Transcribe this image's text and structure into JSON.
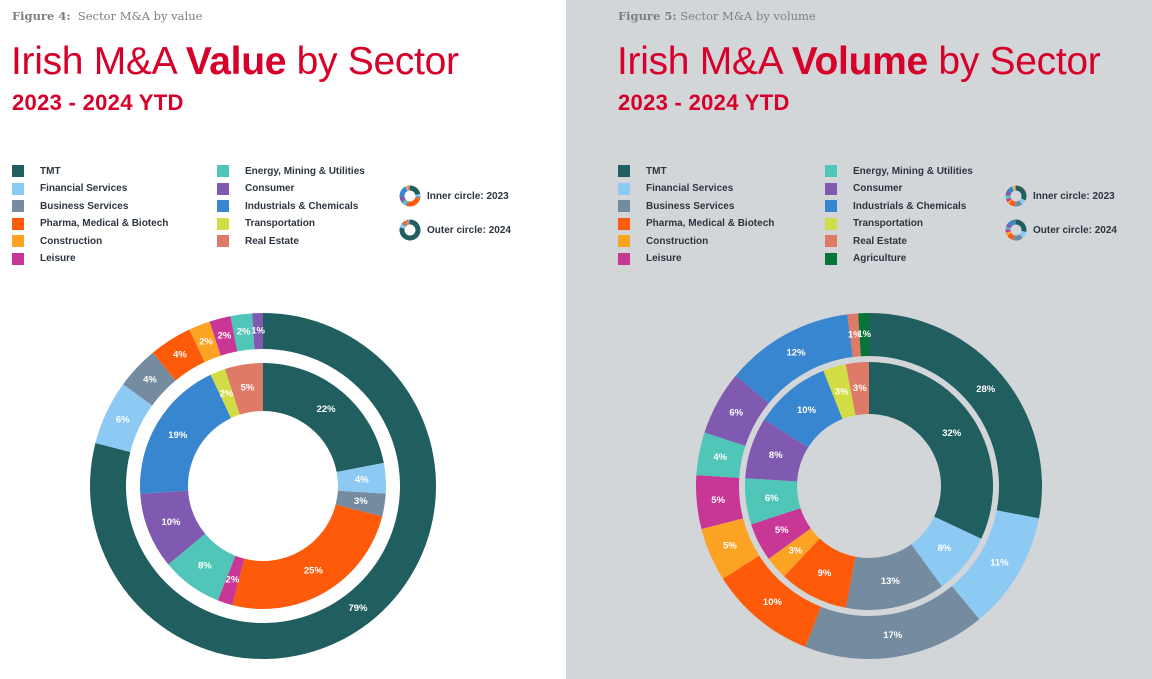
{
  "colors": {
    "TMT": "#215e60",
    "Financial Services": "#8ccaf4",
    "Business Services": "#758ba0",
    "Pharma, Medical & Biotech": "#fd5a0a",
    "Construction": "#fca324",
    "Leisure": "#c93796",
    "Energy, Mining & Utilities": "#50c6b8",
    "Consumer": "#7f5ab0",
    "Industrials & Chemicals": "#3886cf",
    "Transportation": "#d2dc44",
    "Real Estate": "#de7a67",
    "Agriculture": "#047535",
    "accent": "#d6002a"
  },
  "figures": [
    {
      "figure_label_prefix": "Figure 4:",
      "figure_label_text": "Sector M&A by value",
      "title_pre": "Irish M&A ",
      "title_bold": "Value",
      "title_post": " by Sector",
      "subtitle": "2023 - 2024 YTD",
      "legend_col1": [
        "TMT",
        "Financial Services",
        "Business Services",
        "Pharma, Medical & Biotech",
        "Construction",
        "Leisure"
      ],
      "legend_col2": [
        "Energy, Mining & Utilities",
        "Consumer",
        "Industrials & Chemicals",
        "Transportation",
        "Real Estate"
      ],
      "ring_legend": [
        "Inner circle: 2023",
        "Outer circle: 2024"
      ]
    },
    {
      "figure_label_prefix": "Figure 5:",
      "figure_label_text": "Sector M&A by volume",
      "title_pre": "Irish M&A ",
      "title_bold": "Volume",
      "title_post": " by Sector",
      "subtitle": "2023 - 2024 YTD",
      "legend_col1": [
        "TMT",
        "Financial Services",
        "Business Services",
        "Pharma, Medical & Biotech",
        "Construction",
        "Leisure"
      ],
      "legend_col2": [
        "Energy, Mining & Utilities",
        "Consumer",
        "Industrials & Chemicals",
        "Transportation",
        "Real Estate",
        "Agriculture"
      ],
      "ring_legend": [
        "Inner circle: 2023",
        "Outer circle: 2024"
      ]
    }
  ],
  "chart_data": [
    {
      "type": "pie",
      "subtype": "nested-donut",
      "title": "Irish M&A Value by Sector",
      "subtitle": "2023 - 2024 YTD",
      "unit": "%",
      "series": [
        {
          "name": "2023 (inner circle)",
          "categories": [
            "TMT",
            "Financial Services",
            "Business Services",
            "Pharma, Medical & Biotech",
            "Leisure",
            "Energy, Mining & Utilities",
            "Consumer",
            "Industrials & Chemicals",
            "Transportation",
            "Real Estate"
          ],
          "values": [
            22,
            4,
            3,
            25,
            2,
            8,
            10,
            19,
            2,
            5
          ]
        },
        {
          "name": "2024 (outer circle)",
          "categories": [
            "TMT",
            "Financial Services",
            "Business Services",
            "Pharma, Medical & Biotech",
            "Construction",
            "Leisure",
            "Energy, Mining & Utilities",
            "Consumer"
          ],
          "values": [
            79,
            6,
            4,
            4,
            2,
            2,
            2,
            1
          ]
        }
      ],
      "legend": "top"
    },
    {
      "type": "pie",
      "subtype": "nested-donut",
      "title": "Irish M&A Volume by Sector",
      "subtitle": "2023 - 2024 YTD",
      "unit": "%",
      "series": [
        {
          "name": "2023 (inner circle)",
          "categories": [
            "TMT",
            "Financial Services",
            "Business Services",
            "Pharma, Medical & Biotech",
            "Construction",
            "Leisure",
            "Energy, Mining & Utilities",
            "Consumer",
            "Industrials & Chemicals",
            "Transportation",
            "Real Estate"
          ],
          "values": [
            32,
            8,
            13,
            9,
            3,
            5,
            6,
            8,
            10,
            3,
            3
          ]
        },
        {
          "name": "2024 (outer circle)",
          "categories": [
            "TMT",
            "Financial Services",
            "Business Services",
            "Pharma, Medical & Biotech",
            "Construction",
            "Leisure",
            "Energy, Mining & Utilities",
            "Consumer",
            "Industrials & Chemicals",
            "Real Estate",
            "Agriculture"
          ],
          "values": [
            28,
            11,
            17,
            10,
            5,
            5,
            4,
            6,
            12,
            1,
            1
          ]
        }
      ],
      "legend": "top"
    }
  ]
}
